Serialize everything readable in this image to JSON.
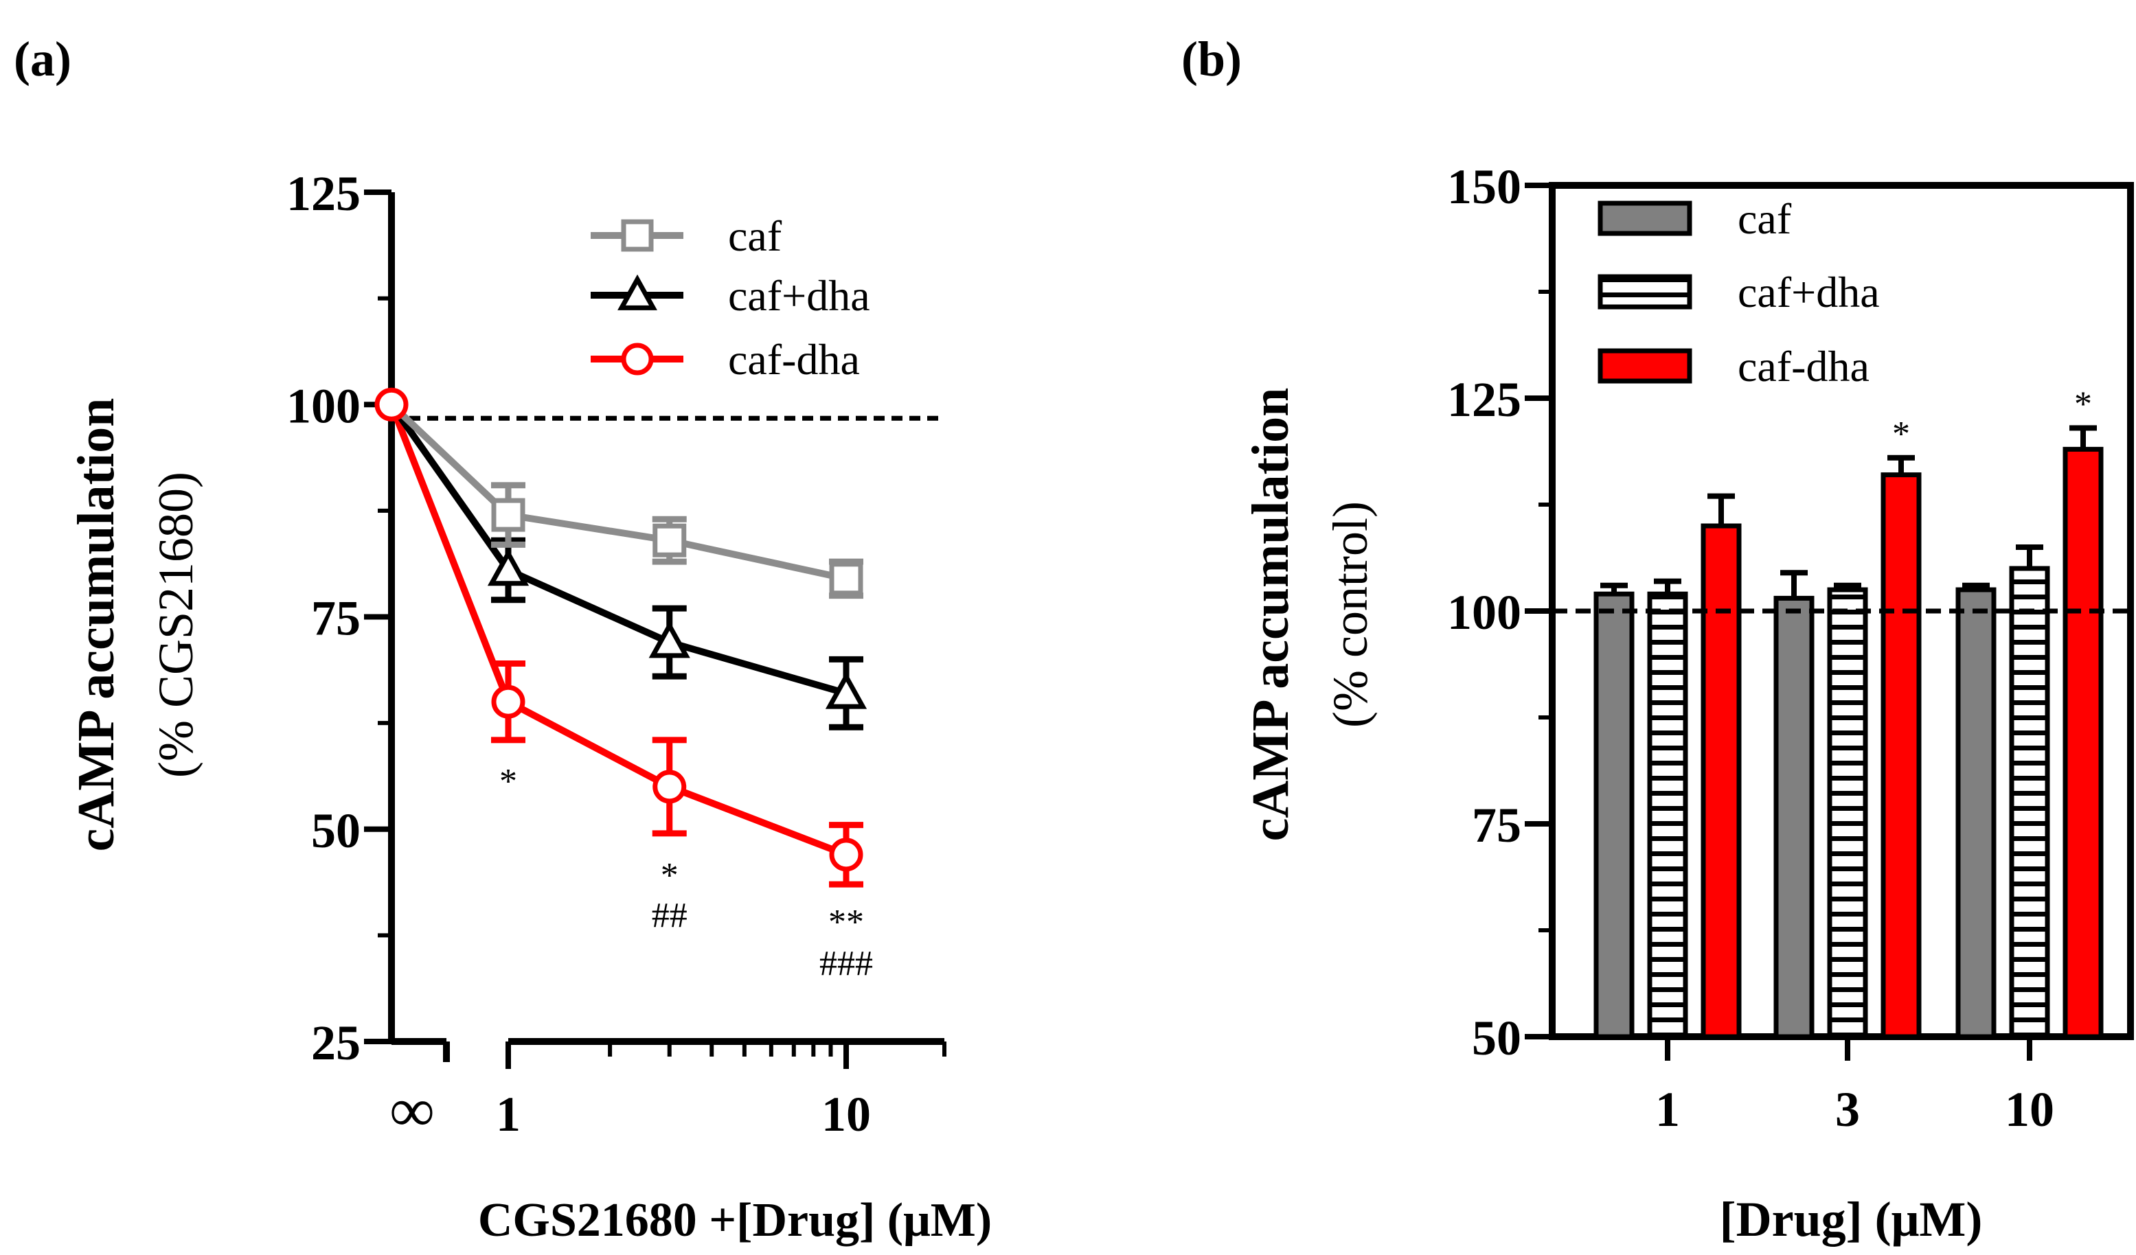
{
  "chart_data": [
    {
      "panel_label": "(a)",
      "type": "line",
      "xscale": "log",
      "ylabel": "cAMP accumulation",
      "ylabel_sub": "(% CGS21680)",
      "xlabel": "CGS21680 +[Drug] (μM)",
      "ylim": [
        25,
        125
      ],
      "yticks": [
        {
          "value": 25,
          "label": "25"
        },
        {
          "value": 50,
          "label": "50"
        },
        {
          "value": 75,
          "label": "75"
        },
        {
          "value": 100,
          "label": "100"
        },
        {
          "value": 125,
          "label": "125"
        }
      ],
      "xticks": [
        {
          "value": 1,
          "label": "1"
        },
        {
          "value": 10,
          "label": "10"
        }
      ],
      "baseline_label": "∞",
      "reference_line": 100,
      "series": [
        {
          "name": "caf",
          "color": "#8c8c8c",
          "marker": "square",
          "start": 100,
          "points": [
            {
              "x": 1,
              "y": 87,
              "err": 3.5
            },
            {
              "x": 3,
              "y": 84,
              "err": 2.5
            },
            {
              "x": 10,
              "y": 79.5,
              "err": 2
            }
          ]
        },
        {
          "name": "caf+dha",
          "color": "#000000",
          "marker": "triangle",
          "start": 100,
          "points": [
            {
              "x": 1,
              "y": 80.5,
              "err": 3.5
            },
            {
              "x": 3,
              "y": 72,
              "err": 4
            },
            {
              "x": 10,
              "y": 66,
              "err": 4
            }
          ]
        },
        {
          "name": "caf-dha",
          "color": "#ff0000",
          "marker": "circle",
          "start": 100,
          "points": [
            {
              "x": 1,
              "y": 65,
              "err": 4.5
            },
            {
              "x": 3,
              "y": 55,
              "err": 5.5
            },
            {
              "x": 10,
              "y": 47,
              "err": 3.5
            }
          ]
        }
      ],
      "annotations": [
        {
          "x": 1,
          "lines": [
            "*"
          ]
        },
        {
          "x": 3,
          "lines": [
            "*",
            "##"
          ]
        },
        {
          "x": 10,
          "lines": [
            "**",
            "###"
          ]
        }
      ]
    },
    {
      "panel_label": "(b)",
      "type": "bar",
      "ylabel": "cAMP accumulation",
      "ylabel_sub": "(% control)",
      "xlabel": "[Drug] (μM)",
      "ylim": [
        50,
        150
      ],
      "yticks": [
        {
          "value": 50,
          "label": "50"
        },
        {
          "value": 75,
          "label": "75"
        },
        {
          "value": 100,
          "label": "100"
        },
        {
          "value": 125,
          "label": "125"
        },
        {
          "value": 150,
          "label": "150"
        }
      ],
      "categories": [
        "1",
        "3",
        "10"
      ],
      "reference_line": 100,
      "series": [
        {
          "name": "caf",
          "color": "#808080",
          "pattern": "solid",
          "values": [
            102,
            101.5,
            102.5
          ],
          "errors": [
            1,
            3,
            0.5
          ]
        },
        {
          "name": "caf+dha",
          "color": "#ffffff",
          "pattern": "horizontal-stripes",
          "values": [
            102,
            102.5,
            105
          ],
          "errors": [
            1.5,
            0.5,
            2.5
          ]
        },
        {
          "name": "caf-dha",
          "color": "#ff0000",
          "pattern": "solid",
          "values": [
            110,
            116,
            119
          ],
          "errors": [
            3.5,
            2,
            2.5
          ]
        }
      ],
      "significance": [
        {
          "category": "3",
          "series": "caf-dha",
          "label": "*"
        },
        {
          "category": "10",
          "series": "caf-dha",
          "label": "*"
        }
      ]
    }
  ]
}
